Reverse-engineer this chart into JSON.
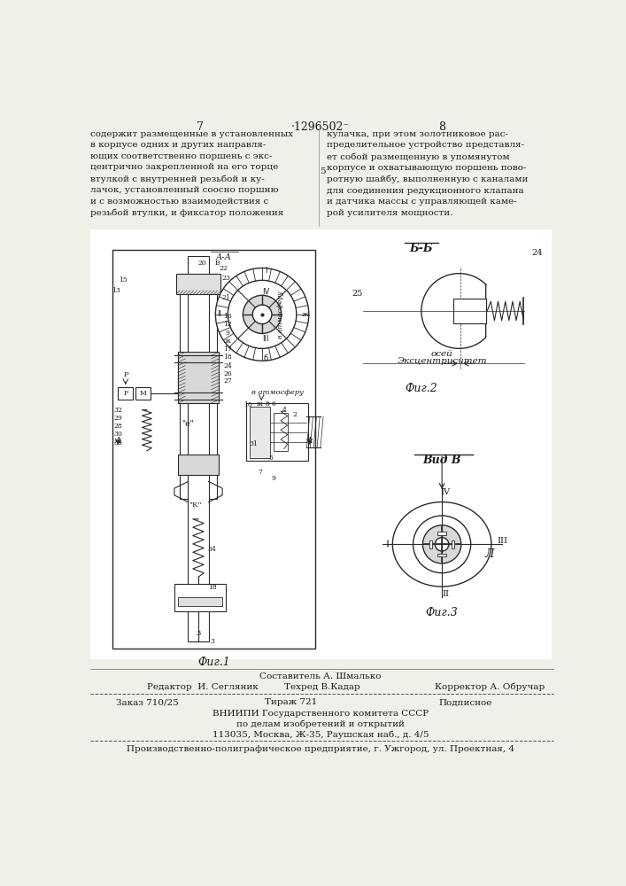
{
  "page_number_left": "7",
  "page_number_center": "·1296502⁻",
  "page_number_right": "8",
  "col_left_text": "содержит размещенные в установленных\nв корпусе одних и других направля-\nющих соответственно поршень с экс-\nцентрично закрепленной на его торце\nвтулкой с внутренней резьбой и ку-\nлачок, установленный соосно поршню\nи с возможностью взаимодействия с\nрезьбой втулки, и фиксатор положения",
  "col_right_text": "кулачка, при этом золотниковое рас-\nпределительное устройство представля-\nет собой размещенную в упомянутом\nкорпусе и охватывающую поршень пово-\nротную шайбу, выполненную с каналами\nдля соединения редукционного клапана\nи датчика массы с управляющей каме-\nрой усилителя мощности.",
  "fig2_label": "Б-Б",
  "fig2_caption": "Фиг.2",
  "fig2_eccentricity_line1": "Эксцентриситет",
  "fig2_eccentricity_line2": "осей",
  "fig3_label": "Вид В",
  "fig3_caption": "Фиг.3",
  "fig3_mark": "Л",
  "fig1_caption": "Фиг.1",
  "editor_line": "Редактор  И. Сегляник",
  "compositor_line": "Составитель А. Шмалько",
  "techred_line": "Техред В.Кадар",
  "corrector_line": "Корректор А. Обручар",
  "order_line": "Заказ 710/25",
  "tirazh_line": "Тираж 721",
  "podpisnoe_line": "Подписное",
  "vniiipi_line1": "ВНИИПИ Государственного комитета СССР",
  "vniiipi_line2": "по делам изобретений и открытий",
  "vniiipi_line3": "113035, Москва, Ж-35, Раушская наб., д. 4/5",
  "production_line": "Производственно-полиграфическое предприятие, г. Ужгород, ул. Проектная, 4",
  "bg_color": "#f0efe8",
  "text_color": "#1a1a1a",
  "line_color": "#2a2a2a"
}
